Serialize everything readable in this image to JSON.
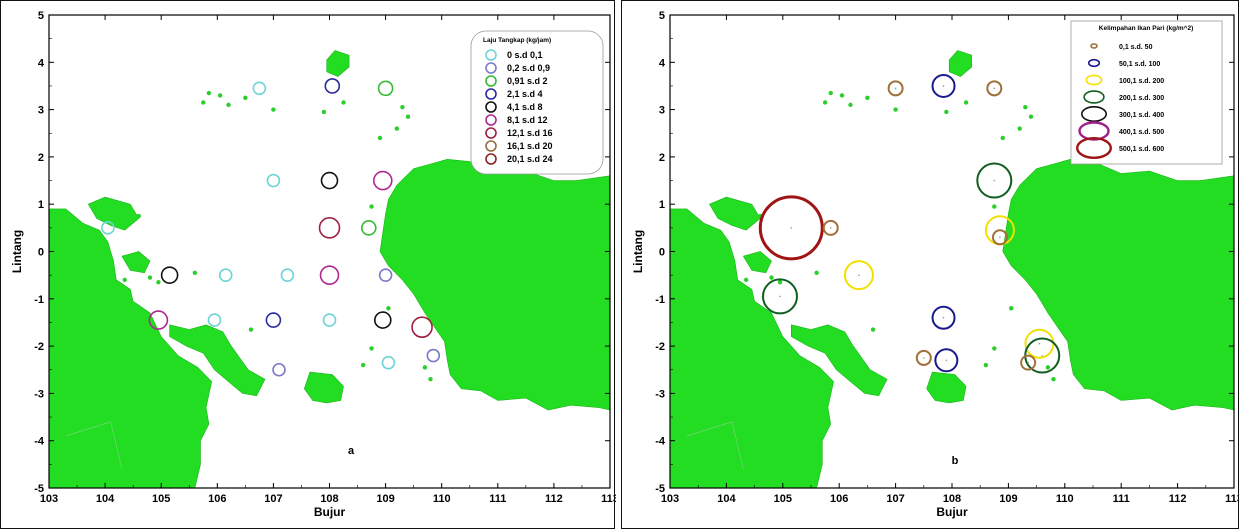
{
  "colors": {
    "land": "#22dd22",
    "island": "#2bcf2b",
    "frame": "#000000"
  },
  "axes": {
    "xlabel": "Bujur",
    "ylabel": "Lintang",
    "xlim": [
      103,
      113
    ],
    "ylim": [
      -5,
      5
    ],
    "xticks": [
      "103",
      "104",
      "105",
      "106",
      "107",
      "108",
      "109",
      "110",
      "111",
      "112",
      "113"
    ],
    "yticks": [
      "-5",
      "-4",
      "-3",
      "-2",
      "-1",
      "0",
      "1",
      "2",
      "3",
      "4",
      "5"
    ]
  },
  "maps": [
    {
      "label": "a",
      "legend_title": "Laju Tangkap (kg/jam)",
      "legend_position": "top-right",
      "classes": [
        {
          "range": "0 s.d 0,1",
          "color": "#6fd3d8"
        },
        {
          "range": "0,2 s.d 0,9",
          "color": "#7a7ac8"
        },
        {
          "range": "0,91 s.d 2",
          "color": "#33bb33"
        },
        {
          "range": "2,1 s.d 4",
          "color": "#2a2aa0"
        },
        {
          "range": "4,1 s.d 8",
          "color": "#111111"
        },
        {
          "range": "8,1 s.d 12",
          "color": "#b0288f"
        },
        {
          "range": "12,1 s.d 16",
          "color": "#a02040"
        },
        {
          "range": "16,1 s.d 20",
          "color": "#9a6b3a"
        },
        {
          "range": "20,1 s.d 24",
          "color": "#8b2222"
        }
      ],
      "stations": [
        {
          "lon": 106.75,
          "lat": 3.45,
          "cls": 0
        },
        {
          "lon": 108.05,
          "lat": 3.5,
          "cls": 3
        },
        {
          "lon": 109.0,
          "lat": 3.45,
          "cls": 2
        },
        {
          "lon": 107.0,
          "lat": 1.5,
          "cls": 0
        },
        {
          "lon": 108.0,
          "lat": 1.5,
          "cls": 4
        },
        {
          "lon": 108.95,
          "lat": 1.5,
          "cls": 5
        },
        {
          "lon": 104.05,
          "lat": 0.5,
          "cls": 0
        },
        {
          "lon": 108.0,
          "lat": 0.5,
          "cls": 6
        },
        {
          "lon": 108.7,
          "lat": 0.5,
          "cls": 2
        },
        {
          "lon": 105.15,
          "lat": -0.5,
          "cls": 4
        },
        {
          "lon": 106.15,
          "lat": -0.5,
          "cls": 0
        },
        {
          "lon": 107.25,
          "lat": -0.5,
          "cls": 0
        },
        {
          "lon": 108.0,
          "lat": -0.5,
          "cls": 5
        },
        {
          "lon": 109.0,
          "lat": -0.5,
          "cls": 1
        },
        {
          "lon": 104.95,
          "lat": -1.45,
          "cls": 5
        },
        {
          "lon": 105.95,
          "lat": -1.45,
          "cls": 0
        },
        {
          "lon": 107.0,
          "lat": -1.45,
          "cls": 3
        },
        {
          "lon": 108.0,
          "lat": -1.45,
          "cls": 0
        },
        {
          "lon": 108.95,
          "lat": -1.45,
          "cls": 4
        },
        {
          "lon": 109.65,
          "lat": -1.6,
          "cls": 6
        },
        {
          "lon": 109.85,
          "lat": -2.2,
          "cls": 1
        },
        {
          "lon": 109.05,
          "lat": -2.35,
          "cls": 0
        },
        {
          "lon": 107.1,
          "lat": -2.5,
          "cls": 1
        }
      ]
    },
    {
      "label": "b",
      "legend_title": "Kelimpahan Ikan Pari (kg/m^2)",
      "legend_position": "top-right",
      "classes": [
        {
          "range": "0,1 s.d. 50",
          "color": "#a0703a"
        },
        {
          "range": "50,1 s.d. 100",
          "color": "#1a1a90"
        },
        {
          "range": "100,1 s.d. 200",
          "color": "#f2e000"
        },
        {
          "range": "200,1 s.d. 300",
          "color": "#0f5e1f"
        },
        {
          "range": "300,1 s.d. 400",
          "color": "#111111"
        },
        {
          "range": "400,1 s.d. 500",
          "color": "#a0208a"
        },
        {
          "range": "500,1 s.d. 600",
          "color": "#a01414"
        }
      ],
      "stations": [
        {
          "lon": 107.0,
          "lat": 3.45,
          "cls": 0
        },
        {
          "lon": 107.85,
          "lat": 3.5,
          "cls": 1
        },
        {
          "lon": 108.75,
          "lat": 3.45,
          "cls": 0
        },
        {
          "lon": 108.75,
          "lat": 1.5,
          "cls": 3
        },
        {
          "lon": 105.15,
          "lat": 0.5,
          "cls": 6
        },
        {
          "lon": 105.85,
          "lat": 0.5,
          "cls": 0
        },
        {
          "lon": 108.85,
          "lat": 0.45,
          "cls": 2
        },
        {
          "lon": 108.85,
          "lat": 0.3,
          "cls": 0
        },
        {
          "lon": 106.35,
          "lat": -0.5,
          "cls": 2
        },
        {
          "lon": 104.95,
          "lat": -0.95,
          "cls": 3
        },
        {
          "lon": 107.85,
          "lat": -1.4,
          "cls": 1
        },
        {
          "lon": 109.55,
          "lat": -1.95,
          "cls": 2
        },
        {
          "lon": 109.6,
          "lat": -2.2,
          "cls": 3
        },
        {
          "lon": 109.35,
          "lat": -2.35,
          "cls": 0
        },
        {
          "lon": 107.5,
          "lat": -2.25,
          "cls": 0
        },
        {
          "lon": 107.9,
          "lat": -2.3,
          "cls": 1
        }
      ]
    }
  ]
}
